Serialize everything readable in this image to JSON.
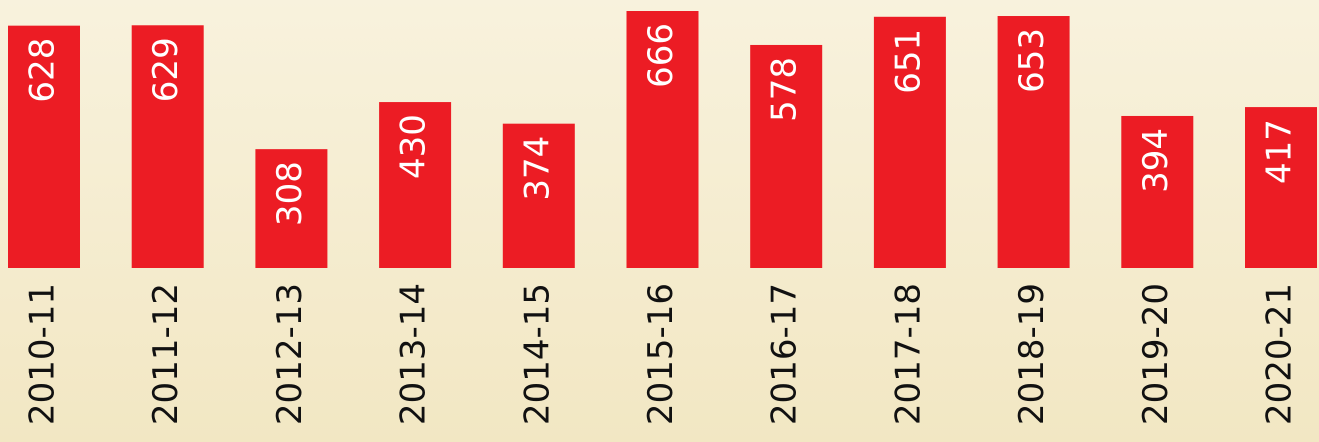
{
  "chart_data": {
    "type": "bar",
    "categories": [
      "2010-11",
      "2011-12",
      "2012-13",
      "2013-14",
      "2014-15",
      "2015-16",
      "2016-17",
      "2017-18",
      "2018-19",
      "2019-20",
      "2020-21"
    ],
    "values": [
      628,
      629,
      308,
      430,
      374,
      666,
      578,
      651,
      653,
      394,
      417
    ],
    "color": "#ec1c24"
  }
}
